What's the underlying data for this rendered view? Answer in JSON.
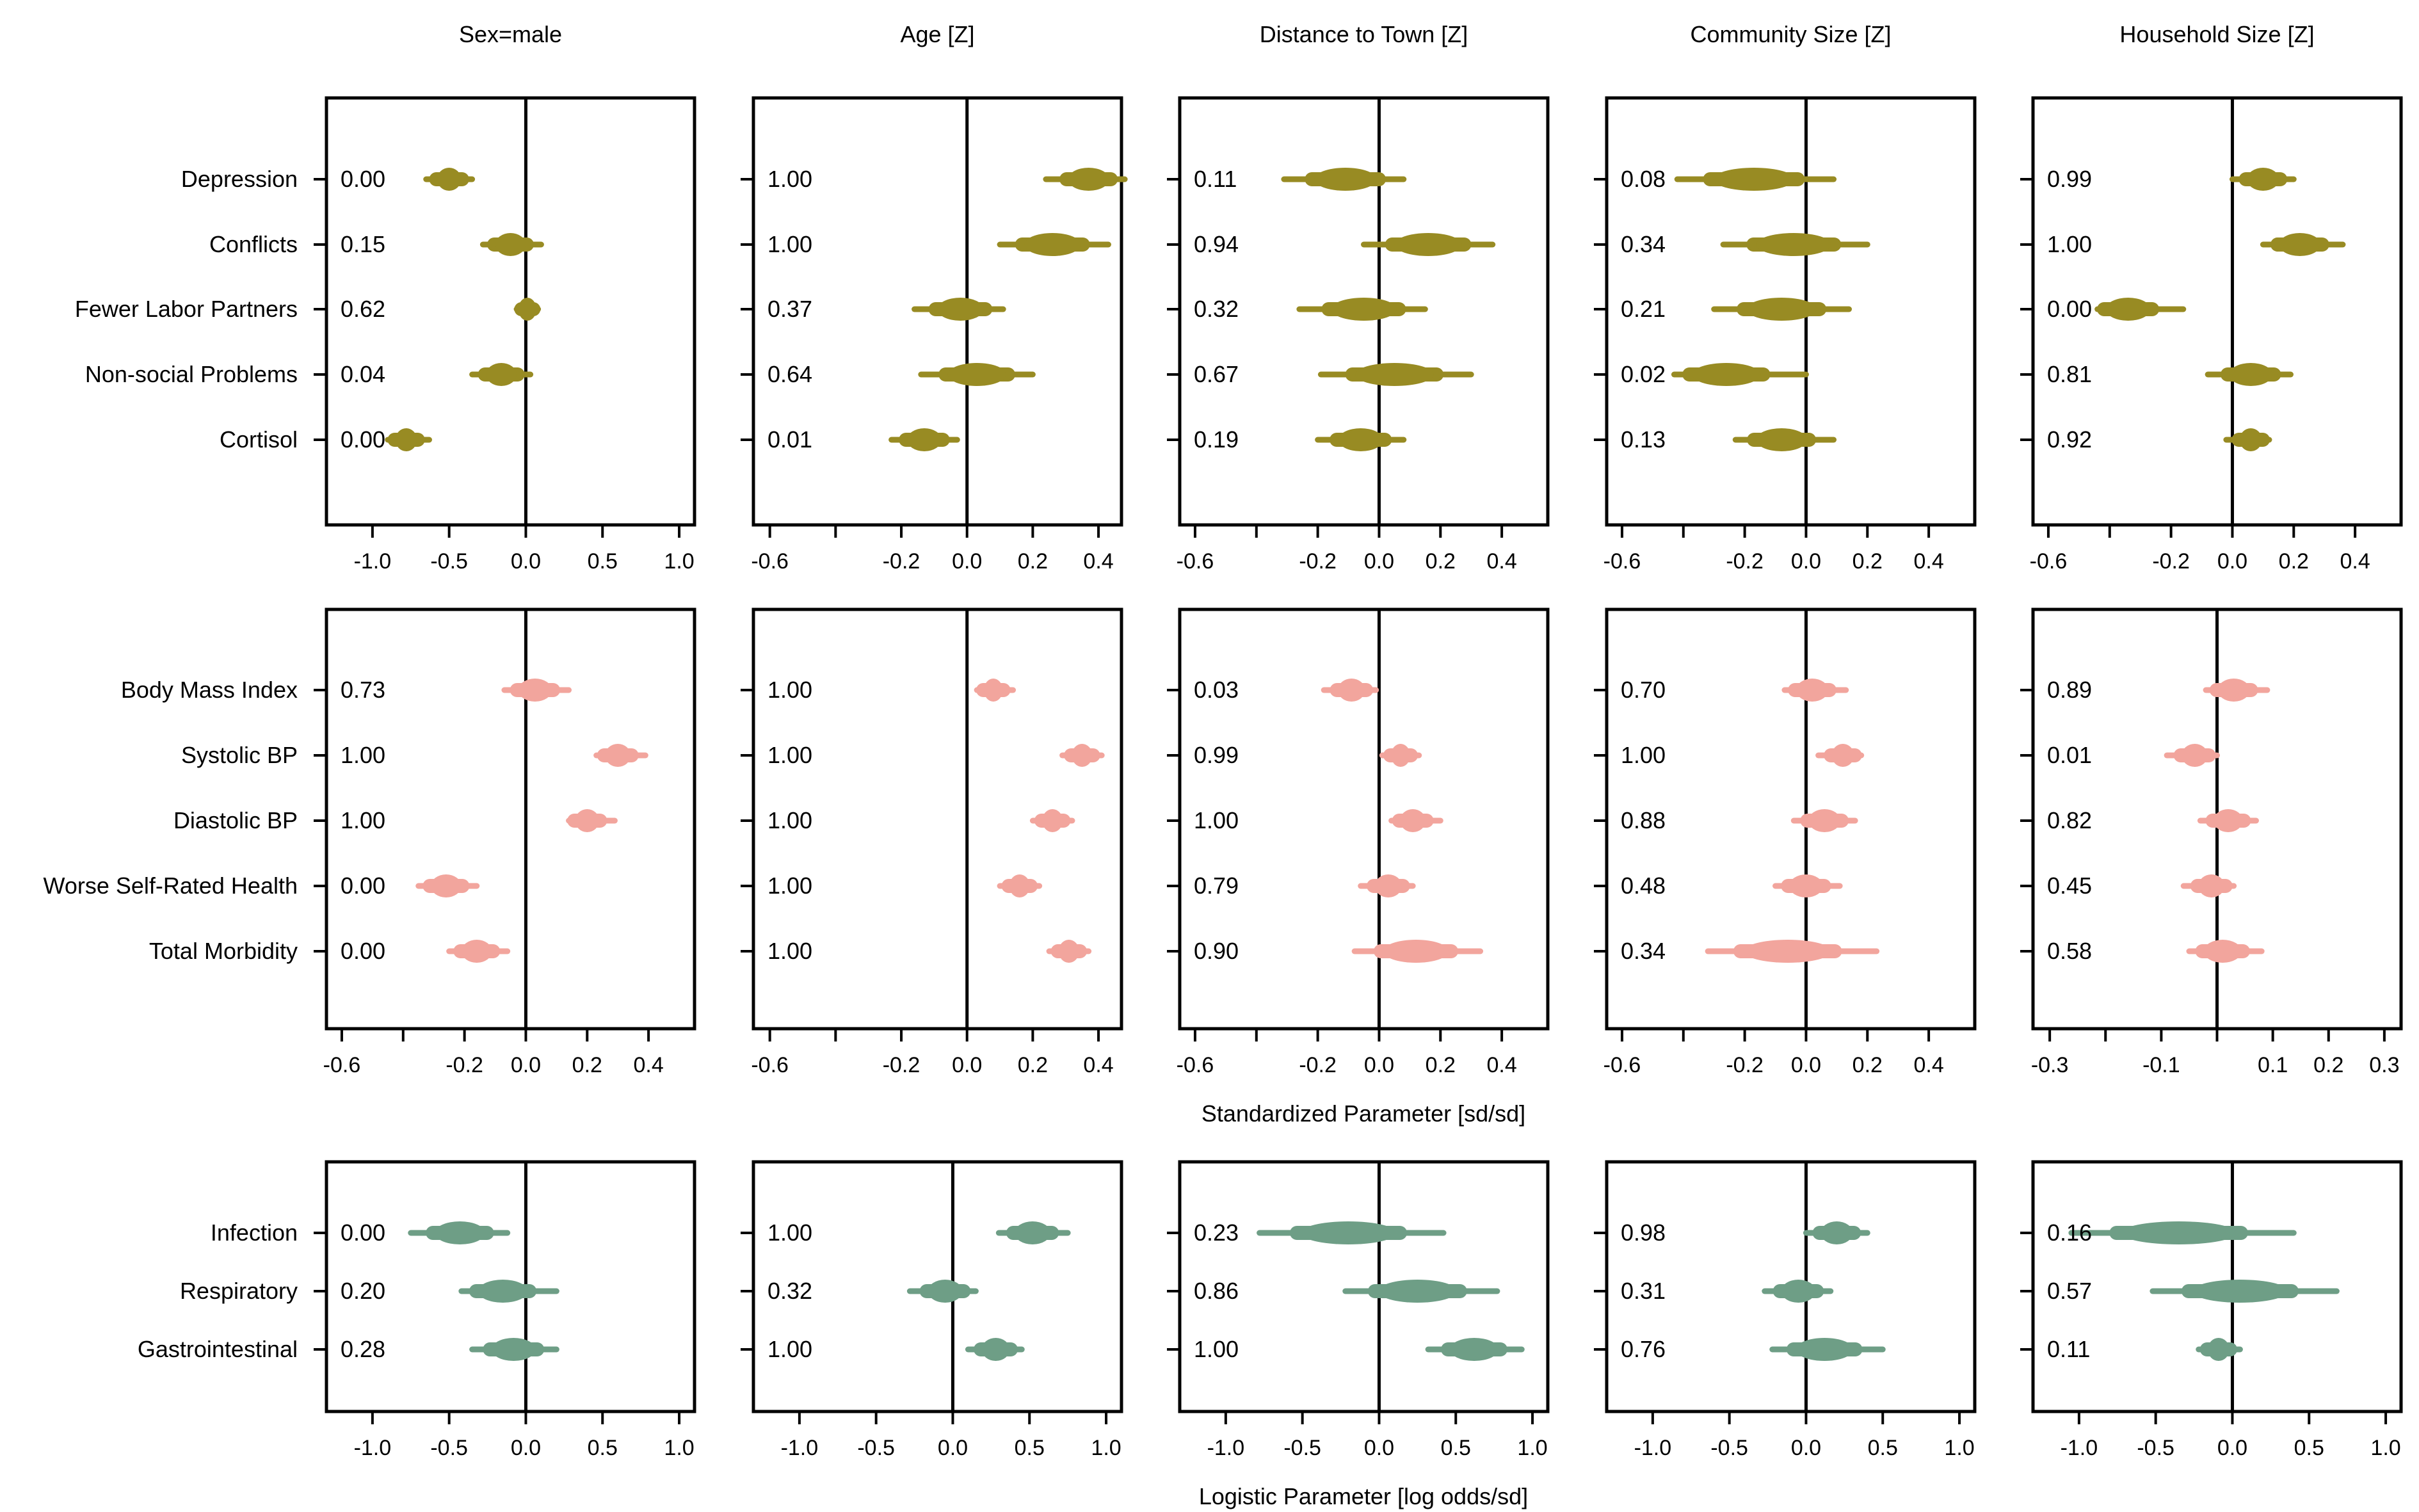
{
  "chart_data": {
    "type": "forest-plot-grid",
    "columns": [
      "Sex=male",
      "Age [Z]",
      "Distance to Town [Z]",
      "Community Size [Z]",
      "Household Size [Z]"
    ],
    "x_axis_titles": {
      "row2": "Standardized Parameter [sd/sd]",
      "row3": "Logistic Parameter [log odds/sd]"
    },
    "colors": {
      "row1": "#988b23",
      "row2": "#f2a59d",
      "row3": "#6e9e86"
    },
    "rows": [
      {
        "categories": [
          "Depression",
          "Conflicts",
          "Fewer Labor Partners",
          "Non-social Problems",
          "Cortisol"
        ],
        "panels": [
          {
            "xlim": [
              -1.3,
              1.1
            ],
            "ticks": [
              "-1.0",
              "-0.5",
              "0.0",
              "0.5",
              "1.0"
            ],
            "tick_values": [
              -1.0,
              -0.5,
              0.0,
              0.5,
              1.0
            ],
            "probs": [
              "0.00",
              "0.15",
              "0.62",
              "0.04",
              "0.00"
            ],
            "est": [
              -0.5,
              -0.1,
              0.01,
              -0.16,
              -0.78
            ],
            "lo": [
              -0.65,
              -0.28,
              -0.06,
              -0.35,
              -0.9
            ],
            "hi": [
              -0.35,
              0.1,
              0.08,
              0.03,
              -0.63
            ]
          },
          {
            "xlim": [
              -0.65,
              0.47
            ],
            "ticks": [
              "-0.6",
              "",
              "-0.2",
              "0.0",
              "0.2",
              "0.4"
            ],
            "tick_values": [
              -0.6,
              -0.4,
              -0.2,
              0.0,
              0.2,
              0.4
            ],
            "probs": [
              "1.00",
              "1.00",
              "0.37",
              "0.64",
              "0.01"
            ],
            "est": [
              0.37,
              0.26,
              -0.02,
              0.03,
              -0.13
            ],
            "lo": [
              0.24,
              0.1,
              -0.16,
              -0.14,
              -0.23
            ],
            "hi": [
              0.48,
              0.43,
              0.11,
              0.2,
              -0.03
            ]
          },
          {
            "xlim": [
              -0.65,
              0.55
            ],
            "ticks": [
              "-0.6",
              "",
              "-0.2",
              "0.0",
              "0.2",
              "0.4"
            ],
            "tick_values": [
              -0.6,
              -0.4,
              -0.2,
              0.0,
              0.2,
              0.4
            ],
            "probs": [
              "0.11",
              "0.94",
              "0.32",
              "0.67",
              "0.19"
            ],
            "est": [
              -0.11,
              0.16,
              -0.05,
              0.05,
              -0.06
            ],
            "lo": [
              -0.31,
              -0.05,
              -0.26,
              -0.19,
              -0.2
            ],
            "hi": [
              0.08,
              0.37,
              0.15,
              0.3,
              0.08
            ]
          },
          {
            "xlim": [
              -0.65,
              0.55
            ],
            "ticks": [
              "-0.6",
              "",
              "-0.2",
              "0.0",
              "0.2",
              "0.4"
            ],
            "tick_values": [
              -0.6,
              -0.4,
              -0.2,
              0.0,
              0.2,
              0.4
            ],
            "probs": [
              "0.08",
              "0.34",
              "0.21",
              "0.02",
              "0.13"
            ],
            "est": [
              -0.17,
              -0.04,
              -0.08,
              -0.26,
              -0.08
            ],
            "lo": [
              -0.42,
              -0.27,
              -0.3,
              -0.43,
              -0.23
            ],
            "hi": [
              0.09,
              0.2,
              0.14,
              0.0,
              0.09
            ]
          },
          {
            "xlim": [
              -0.65,
              0.55
            ],
            "ticks": [
              "-0.6",
              "",
              "-0.2",
              "0.0",
              "0.2",
              "0.4"
            ],
            "tick_values": [
              -0.6,
              -0.4,
              -0.2,
              0.0,
              0.2,
              0.4
            ],
            "probs": [
              "0.99",
              "1.00",
              "0.00",
              "0.81",
              "0.92"
            ],
            "est": [
              0.1,
              0.22,
              -0.34,
              0.06,
              0.06
            ],
            "lo": [
              0.0,
              0.1,
              -0.44,
              -0.08,
              -0.02
            ],
            "hi": [
              0.2,
              0.36,
              -0.16,
              0.19,
              0.12
            ]
          }
        ]
      },
      {
        "categories": [
          "Body Mass Index",
          "Systolic BP",
          "Diastolic BP",
          "Worse Self-Rated Health",
          "Total Morbidity"
        ],
        "panels": [
          {
            "xlim": [
              -0.65,
              0.55
            ],
            "ticks": [
              "-0.6",
              "",
              "-0.2",
              "0.0",
              "0.2",
              "0.4"
            ],
            "tick_values": [
              -0.6,
              -0.4,
              -0.2,
              0.0,
              0.2,
              0.4
            ],
            "probs": [
              "0.73",
              "1.00",
              "1.00",
              "0.00",
              "0.00"
            ],
            "est": [
              0.03,
              0.3,
              0.2,
              -0.26,
              -0.16
            ],
            "lo": [
              -0.07,
              0.23,
              0.14,
              -0.35,
              -0.25
            ],
            "hi": [
              0.14,
              0.39,
              0.29,
              -0.16,
              -0.06
            ]
          },
          {
            "xlim": [
              -0.65,
              0.47
            ],
            "ticks": [
              "-0.6",
              "",
              "-0.2",
              "0.0",
              "0.2",
              "0.4"
            ],
            "tick_values": [
              -0.6,
              -0.4,
              -0.2,
              0.0,
              0.2,
              0.4
            ],
            "probs": [
              "1.00",
              "1.00",
              "1.00",
              "1.00",
              "1.00"
            ],
            "est": [
              0.08,
              0.35,
              0.26,
              0.16,
              0.31
            ],
            "lo": [
              0.03,
              0.29,
              0.2,
              0.1,
              0.25
            ],
            "hi": [
              0.14,
              0.41,
              0.32,
              0.22,
              0.37
            ]
          },
          {
            "xlim": [
              -0.65,
              0.55
            ],
            "ticks": [
              "-0.6",
              "",
              "-0.2",
              "0.0",
              "0.2",
              "0.4"
            ],
            "tick_values": [
              -0.6,
              -0.4,
              -0.2,
              0.0,
              0.2,
              0.4
            ],
            "probs": [
              "0.03",
              "0.99",
              "1.00",
              "0.79",
              "0.90"
            ],
            "est": [
              -0.09,
              0.07,
              0.11,
              0.03,
              0.12
            ],
            "lo": [
              -0.18,
              0.01,
              0.04,
              -0.06,
              -0.08
            ],
            "hi": [
              -0.01,
              0.13,
              0.2,
              0.11,
              0.33
            ]
          },
          {
            "xlim": [
              -0.65,
              0.55
            ],
            "ticks": [
              "-0.6",
              "",
              "-0.2",
              "0.0",
              "0.2",
              "0.4"
            ],
            "tick_values": [
              -0.6,
              -0.4,
              -0.2,
              0.0,
              0.2,
              0.4
            ],
            "probs": [
              "0.70",
              "1.00",
              "0.88",
              "0.48",
              "0.34"
            ],
            "est": [
              0.02,
              0.12,
              0.06,
              0.0,
              -0.06
            ],
            "lo": [
              -0.07,
              0.04,
              -0.04,
              -0.1,
              -0.32
            ],
            "hi": [
              0.13,
              0.18,
              0.16,
              0.11,
              0.23
            ]
          },
          {
            "xlim": [
              -0.33,
              0.33
            ],
            "ticks": [
              "-0.3",
              "",
              "-0.1",
              "",
              "0.1",
              "0.2",
              "0.3"
            ],
            "tick_values": [
              -0.3,
              -0.2,
              -0.1,
              0.0,
              0.1,
              0.2,
              0.3
            ],
            "probs": [
              "0.89",
              "0.01",
              "0.82",
              "0.45",
              "0.58"
            ],
            "est": [
              0.03,
              -0.04,
              0.02,
              -0.01,
              0.01
            ],
            "lo": [
              -0.02,
              -0.09,
              -0.03,
              -0.06,
              -0.05
            ],
            "hi": [
              0.09,
              0.0,
              0.07,
              0.03,
              0.08
            ]
          }
        ]
      },
      {
        "categories": [
          "Infection",
          "Respiratory",
          "Gastrointestinal"
        ],
        "panels": [
          {
            "xlim": [
              -1.3,
              1.1
            ],
            "ticks": [
              "-1.0",
              "-0.5",
              "0.0",
              "0.5",
              "1.0"
            ],
            "tick_values": [
              -1.0,
              -0.5,
              0.0,
              0.5,
              1.0
            ],
            "probs": [
              "0.00",
              "0.20",
              "0.28"
            ],
            "est": [
              -0.43,
              -0.15,
              -0.08
            ],
            "lo": [
              -0.75,
              -0.42,
              -0.35
            ],
            "hi": [
              -0.12,
              0.2,
              0.2
            ]
          },
          {
            "xlim": [
              -1.3,
              1.1
            ],
            "ticks": [
              "-1.0",
              "-0.5",
              "0.0",
              "0.5",
              "1.0"
            ],
            "tick_values": [
              -1.0,
              -0.5,
              0.0,
              0.5,
              1.0
            ],
            "probs": [
              "1.00",
              "0.32",
              "1.00"
            ],
            "est": [
              0.52,
              -0.05,
              0.28
            ],
            "lo": [
              0.3,
              -0.28,
              0.1
            ],
            "hi": [
              0.75,
              0.15,
              0.45
            ]
          },
          {
            "xlim": [
              -1.3,
              1.1
            ],
            "ticks": [
              "-1.0",
              "-0.5",
              "0.0",
              "0.5",
              "1.0"
            ],
            "tick_values": [
              -1.0,
              -0.5,
              0.0,
              0.5,
              1.0
            ],
            "probs": [
              "0.23",
              "0.86",
              "1.00"
            ],
            "est": [
              -0.2,
              0.25,
              0.62
            ],
            "lo": [
              -0.78,
              -0.22,
              0.32
            ],
            "hi": [
              0.42,
              0.77,
              0.93
            ]
          },
          {
            "xlim": [
              -1.3,
              1.1
            ],
            "ticks": [
              "-1.0",
              "-0.5",
              "0.0",
              "0.5",
              "1.0"
            ],
            "tick_values": [
              -1.0,
              -0.5,
              0.0,
              0.5,
              1.0
            ],
            "probs": [
              "0.98",
              "0.31",
              "0.76"
            ],
            "est": [
              0.2,
              -0.05,
              0.12
            ],
            "lo": [
              0.0,
              -0.27,
              -0.22
            ],
            "hi": [
              0.4,
              0.16,
              0.5
            ]
          },
          {
            "xlim": [
              -1.3,
              1.1
            ],
            "ticks": [
              "-1.0",
              "-0.5",
              "0.0",
              "0.5",
              "1.0"
            ],
            "tick_values": [
              -1.0,
              -0.5,
              0.0,
              0.5,
              1.0
            ],
            "probs": [
              "0.16",
              "0.57",
              "0.11"
            ],
            "est": [
              -0.35,
              0.05,
              -0.09
            ],
            "lo": [
              -1.05,
              -0.52,
              -0.22
            ],
            "hi": [
              0.4,
              0.68,
              0.05
            ]
          }
        ]
      }
    ]
  }
}
